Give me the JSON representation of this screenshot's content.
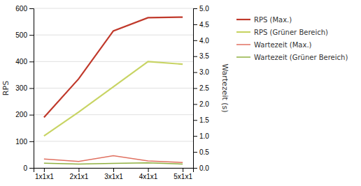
{
  "chart_data": {
    "type": "line",
    "categories": [
      "1x1x1",
      "2x1x1",
      "3x1x1",
      "4x1x1",
      "5x1x1"
    ],
    "series": [
      {
        "name": "RPS (Max.)",
        "color": "#c0392b",
        "values": [
          190,
          335,
          515,
          565,
          567
        ]
      },
      {
        "name": "RPS (Grüner Bereich)",
        "color": "#c8d464",
        "values": [
          120,
          210,
          305,
          400,
          390
        ]
      },
      {
        "name": "Wartezeit (Max.)",
        "color": "#e07060",
        "axis": "y2",
        "values": [
          0.28,
          0.2,
          0.38,
          0.22,
          0.17
        ]
      },
      {
        "name": "Wartezeit (Grüner Bereich)",
        "color": "#90b040",
        "axis": "y2",
        "values": [
          0.15,
          0.12,
          0.14,
          0.16,
          0.12
        ]
      }
    ],
    "y_label": "RPS",
    "y2_label": "Wartezeit (s)",
    "ylim": [
      0,
      600
    ],
    "yticks": [
      0,
      100,
      200,
      300,
      400,
      500,
      600
    ],
    "y2lim": [
      0,
      5
    ],
    "y2ticks": [
      {
        "value": 0,
        "label": "0.0"
      },
      0.5,
      {
        "value": 1.0,
        "label": "1.0"
      },
      1.5,
      {
        "value": 2.0,
        "label": "2.0"
      },
      2.5,
      {
        "value": 3.0,
        "label": "3.0"
      },
      3.5,
      {
        "value": 4.0,
        "label": "4.0"
      },
      4.5,
      {
        "value": 5.0,
        "label": "5.0"
      }
    ],
    "grid": true,
    "legend": "right"
  }
}
